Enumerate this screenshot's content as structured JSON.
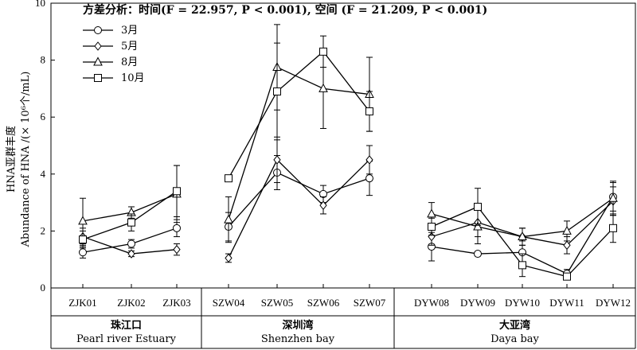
{
  "chart_data": {
    "type": "line",
    "annotation": "方差分析：时间(F = 22.957, P < 0.001), 空间 (F = 21.209, P < 0.001)",
    "ylabel_cn": "HNA亚群丰度",
    "ylabel_en": "Abundance of HNA /(× 10⁶个/mL)",
    "ylim": [
      0,
      10
    ],
    "yticks": [
      "0",
      "2",
      "4",
      "6",
      "8",
      "10"
    ],
    "categories": [
      "ZJK01",
      "ZJK02",
      "ZJK03",
      "SZW04",
      "SZW05",
      "SZW06",
      "SZW07",
      "DYW08",
      "DYW09",
      "DYW10",
      "DYW11",
      "DYW12"
    ],
    "groups": [
      {
        "cn": "珠江口",
        "en": "Pearl river Estuary",
        "members": [
          0,
          1,
          2
        ]
      },
      {
        "cn": "深圳湾",
        "en": "Shenzhen bay",
        "members": [
          3,
          4,
          5,
          6
        ]
      },
      {
        "cn": "大亚湾",
        "en": "Daya bay",
        "members": [
          7,
          8,
          9,
          10,
          11
        ]
      }
    ],
    "legend_position": "top-left",
    "series": [
      {
        "name": "3月",
        "marker": "circle",
        "values": [
          1.25,
          1.55,
          2.1,
          2.15,
          4.05,
          3.3,
          3.85,
          1.45,
          1.2,
          1.25,
          0.5,
          3.2
        ],
        "errors": [
          0.2,
          0.15,
          0.3,
          0.5,
          0.6,
          0.3,
          0.6,
          0.5,
          0.05,
          0.4,
          0.15,
          0.5
        ]
      },
      {
        "name": "5月",
        "marker": "diamond",
        "values": [
          1.8,
          1.2,
          1.35,
          1.05,
          4.5,
          2.9,
          4.5,
          1.8,
          2.3,
          1.8,
          1.5,
          3.05
        ],
        "errors": [
          0.3,
          0.1,
          0.2,
          0.15,
          0.8,
          0.3,
          0.5,
          0.3,
          0.5,
          0.3,
          0.3,
          0.5
        ]
      },
      {
        "name": "8月",
        "marker": "triangle",
        "values": [
          2.35,
          2.65,
          3.3,
          2.4,
          7.75,
          7.0,
          6.8,
          2.6,
          2.15,
          1.8,
          2.0,
          3.15
        ],
        "errors": [
          0.8,
          0.2,
          1.0,
          0.8,
          1.5,
          1.4,
          1.3,
          0.4,
          0.6,
          0.3,
          0.35,
          0.6
        ]
      },
      {
        "name": "10月",
        "marker": "square",
        "values": [
          1.7,
          2.3,
          3.4,
          3.85,
          6.9,
          8.3,
          6.2,
          2.15,
          2.85,
          0.8,
          0.4,
          2.1
        ],
        "errors": [
          0.3,
          0.3,
          0.9,
          0.05,
          1.7,
          0.55,
          0.7,
          0.3,
          0.65,
          0.4,
          0.1,
          0.5
        ]
      }
    ]
  }
}
